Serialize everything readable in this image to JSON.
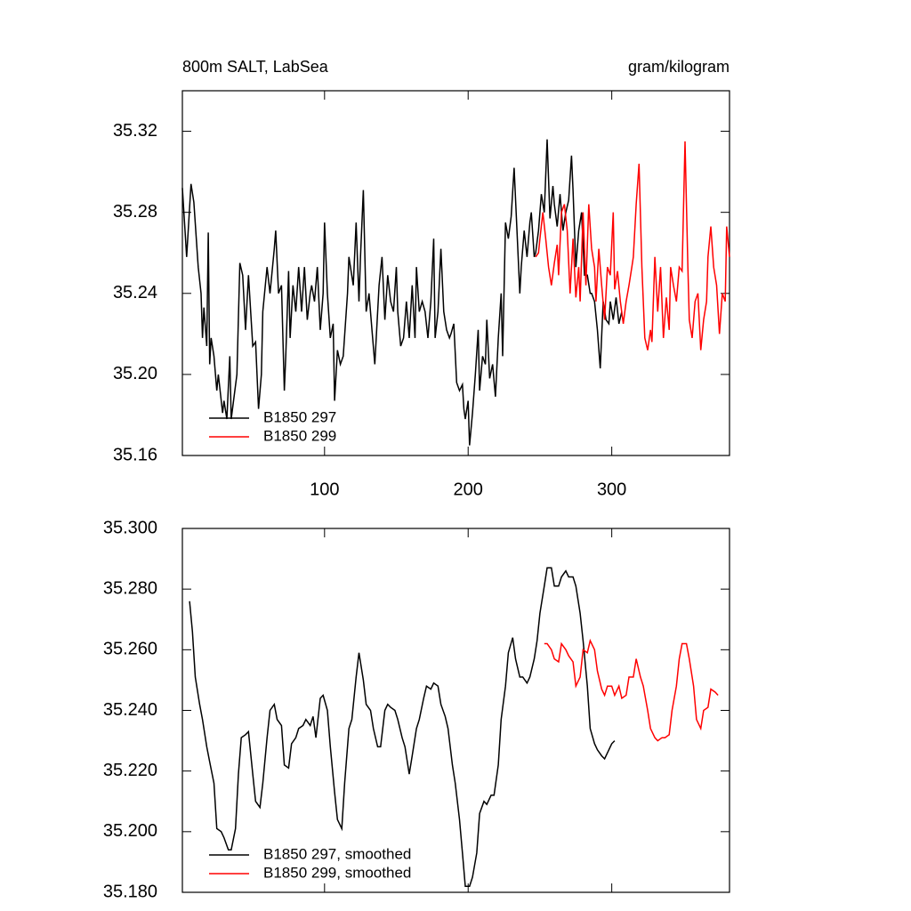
{
  "chart_data": [
    {
      "type": "line",
      "title": "800m SALT, LabSea",
      "units": "gram/kilogram",
      "xlim": [
        1,
        382
      ],
      "xticks": [
        100,
        200,
        300
      ],
      "show_xtick_labels": true,
      "ylim": [
        35.16,
        35.34
      ],
      "yticks": [
        35.16,
        {
          "value": 35.2,
          "label": "35.20"
        },
        35.24,
        35.28,
        35.32
      ],
      "legend": "lower left",
      "series": [
        {
          "name": "B1850 297",
          "color": "#000000",
          "x": [
            1,
            4,
            7,
            9,
            12,
            14,
            15,
            16,
            18,
            19,
            20,
            21,
            23,
            25,
            26,
            29,
            30,
            32,
            34,
            35,
            37,
            39,
            41,
            43,
            45,
            47,
            50,
            52,
            54,
            56,
            57,
            60,
            62,
            65,
            66,
            68,
            70,
            72,
            73,
            75,
            76,
            78,
            80,
            82,
            84,
            86,
            88,
            90,
            91,
            93,
            95,
            97,
            99,
            100,
            102,
            104,
            106,
            107,
            109,
            111,
            113,
            116,
            117,
            120,
            122,
            124,
            125,
            127,
            129,
            131,
            133,
            135,
            137,
            138,
            140,
            142,
            144,
            146,
            148,
            150,
            151,
            153,
            155,
            157,
            159,
            161,
            163,
            164,
            166,
            168,
            170,
            172,
            174,
            176,
            177,
            179,
            181,
            183,
            185,
            187,
            188,
            190,
            192,
            194,
            196,
            197,
            198,
            200,
            201,
            203,
            205,
            207,
            208,
            210,
            212,
            213,
            215,
            217,
            219,
            221,
            223,
            224,
            226,
            228,
            230,
            232,
            234,
            236,
            237,
            239,
            241,
            243,
            244,
            246,
            247,
            249,
            251,
            253,
            255,
            257,
            259,
            260,
            262,
            264,
            266,
            268,
            270,
            272,
            273,
            275,
            277,
            279,
            281,
            283,
            285,
            286,
            288,
            290,
            292,
            294,
            296,
            298,
            299,
            301,
            303,
            305,
            307
          ],
          "values": [
            35.292,
            35.258,
            35.294,
            35.285,
            35.253,
            35.24,
            35.218,
            35.233,
            35.214,
            35.27,
            35.205,
            35.218,
            35.209,
            35.192,
            35.2,
            35.181,
            35.187,
            35.178,
            35.209,
            35.178,
            35.189,
            35.2,
            35.255,
            35.249,
            35.222,
            35.249,
            35.214,
            35.216,
            35.183,
            35.2,
            35.231,
            35.253,
            35.24,
            35.262,
            35.271,
            35.24,
            35.244,
            35.192,
            35.209,
            35.251,
            35.218,
            35.244,
            35.231,
            35.253,
            35.231,
            35.253,
            35.227,
            35.24,
            35.244,
            35.236,
            35.253,
            35.222,
            35.24,
            35.275,
            35.24,
            35.218,
            35.225,
            35.187,
            35.212,
            35.205,
            35.209,
            35.24,
            35.258,
            35.244,
            35.275,
            35.236,
            35.258,
            35.291,
            35.231,
            35.24,
            35.222,
            35.205,
            35.231,
            35.244,
            35.258,
            35.227,
            35.249,
            35.236,
            35.231,
            35.253,
            35.231,
            35.214,
            35.218,
            35.236,
            35.218,
            35.244,
            35.218,
            35.253,
            35.231,
            35.236,
            35.231,
            35.218,
            35.236,
            35.267,
            35.218,
            35.231,
            35.262,
            35.231,
            35.222,
            35.218,
            35.22,
            35.225,
            35.196,
            35.192,
            35.195,
            35.183,
            35.178,
            35.187,
            35.165,
            35.181,
            35.2,
            35.222,
            35.192,
            35.209,
            35.205,
            35.227,
            35.198,
            35.205,
            35.189,
            35.218,
            35.24,
            35.209,
            35.275,
            35.267,
            35.278,
            35.302,
            35.271,
            35.24,
            35.253,
            35.271,
            35.258,
            35.275,
            35.28,
            35.258,
            35.26,
            35.271,
            35.289,
            35.28,
            35.316,
            35.277,
            35.293,
            35.284,
            35.273,
            35.289,
            35.271,
            35.28,
            35.286,
            35.308,
            35.291,
            35.253,
            35.271,
            35.28,
            35.249,
            35.249,
            35.24,
            35.24,
            35.236,
            35.222,
            35.203,
            35.236,
            35.227,
            35.225,
            35.236,
            35.227,
            35.238,
            35.225,
            35.231
          ]
        },
        {
          "name": "B1850 299",
          "color": "#ff0000",
          "x": [
            247,
            249,
            250,
            252,
            254,
            256,
            258,
            260,
            262,
            263,
            265,
            267,
            269,
            271,
            273,
            275,
            277,
            278,
            280,
            282,
            284,
            286,
            288,
            289,
            291,
            293,
            295,
            297,
            299,
            301,
            302,
            304,
            306,
            308,
            310,
            312,
            314,
            315,
            317,
            319,
            321,
            323,
            325,
            327,
            328,
            330,
            332,
            334,
            336,
            338,
            340,
            341,
            343,
            345,
            347,
            349,
            351,
            353,
            354,
            356,
            358,
            360,
            362,
            364,
            366,
            367,
            369,
            371,
            373,
            375,
            377,
            379,
            380,
            382
          ],
          "values": [
            35.258,
            35.26,
            35.267,
            35.28,
            35.267,
            35.253,
            35.244,
            35.255,
            35.264,
            35.249,
            35.28,
            35.284,
            35.271,
            35.24,
            35.267,
            35.238,
            35.253,
            35.236,
            35.28,
            35.244,
            35.284,
            35.262,
            35.253,
            35.236,
            35.262,
            35.244,
            35.227,
            35.253,
            35.249,
            35.28,
            35.242,
            35.251,
            35.236,
            35.225,
            35.236,
            35.244,
            35.253,
            35.258,
            35.284,
            35.304,
            35.253,
            35.218,
            35.212,
            35.222,
            35.216,
            35.258,
            35.231,
            35.253,
            35.218,
            35.238,
            35.222,
            35.253,
            35.244,
            35.236,
            35.253,
            35.251,
            35.315,
            35.253,
            35.227,
            35.218,
            35.236,
            35.24,
            35.212,
            35.227,
            35.236,
            35.258,
            35.273,
            35.253,
            35.244,
            35.22,
            35.24,
            35.236,
            35.273,
            35.258
          ]
        }
      ]
    },
    {
      "type": "line",
      "xlim": [
        1,
        382
      ],
      "xticks": [
        100,
        200,
        300
      ],
      "show_xtick_labels": false,
      "ylim": [
        35.18,
        35.3
      ],
      "yticks": [
        {
          "value": 35.18,
          "label": "35.180"
        },
        {
          "value": 35.2,
          "label": "35.200"
        },
        {
          "value": 35.22,
          "label": "35.220"
        },
        {
          "value": 35.24,
          "label": "35.240"
        },
        {
          "value": 35.26,
          "label": "35.260"
        },
        {
          "value": 35.28,
          "label": "35.280"
        },
        {
          "value": 35.3,
          "label": "35.300"
        }
      ],
      "legend": "lower left",
      "series": [
        {
          "name": "B1850 297, smoothed",
          "color": "#000000",
          "x": [
            6,
            8,
            10,
            13,
            15,
            18,
            20,
            23,
            25,
            28,
            30,
            33,
            35,
            38,
            40,
            42,
            45,
            47,
            50,
            52,
            55,
            57,
            60,
            62,
            65,
            67,
            70,
            72,
            75,
            77,
            80,
            82,
            85,
            87,
            90,
            92,
            94,
            97,
            99,
            102,
            104,
            107,
            109,
            112,
            114,
            117,
            119,
            122,
            124,
            127,
            129,
            132,
            134,
            137,
            139,
            142,
            144,
            146,
            149,
            151,
            154,
            156,
            159,
            161,
            164,
            166,
            169,
            171,
            174,
            176,
            179,
            181,
            184,
            186,
            189,
            191,
            194,
            196,
            198,
            201,
            203,
            206,
            208,
            211,
            213,
            216,
            218,
            221,
            223,
            226,
            228,
            231,
            233,
            236,
            238,
            241,
            243,
            246,
            248,
            250,
            253,
            255,
            258,
            260,
            263,
            265,
            268,
            270,
            273,
            275,
            278,
            280,
            283,
            285,
            288,
            290,
            293,
            295,
            297,
            300,
            302
          ],
          "values": [
            35.276,
            35.266,
            35.251,
            35.242,
            35.237,
            35.228,
            35.223,
            35.216,
            35.201,
            35.2,
            35.198,
            35.194,
            35.194,
            35.201,
            35.219,
            35.231,
            35.232,
            35.233,
            35.219,
            35.21,
            35.208,
            35.216,
            35.231,
            35.24,
            35.242,
            35.237,
            35.235,
            35.222,
            35.221,
            35.229,
            35.231,
            35.234,
            35.235,
            35.237,
            35.235,
            35.238,
            35.231,
            35.244,
            35.245,
            35.24,
            35.228,
            35.213,
            35.204,
            35.201,
            35.216,
            35.234,
            35.237,
            35.251,
            35.259,
            35.25,
            35.242,
            35.24,
            35.234,
            35.228,
            35.228,
            35.24,
            35.242,
            35.241,
            35.24,
            35.237,
            35.231,
            35.228,
            35.219,
            35.225,
            35.234,
            35.237,
            35.244,
            35.248,
            35.247,
            35.249,
            35.248,
            35.242,
            35.238,
            35.234,
            35.222,
            35.216,
            35.204,
            35.193,
            35.182,
            35.182,
            35.185,
            35.193,
            35.206,
            35.21,
            35.209,
            35.212,
            35.212,
            35.222,
            35.237,
            35.248,
            35.259,
            35.264,
            35.257,
            35.251,
            35.251,
            35.249,
            35.251,
            35.257,
            35.263,
            35.272,
            35.281,
            35.287,
            35.287,
            35.281,
            35.281,
            35.284,
            35.286,
            35.284,
            35.284,
            35.281,
            35.272,
            35.263,
            35.248,
            35.234,
            35.229,
            35.227,
            35.225,
            35.224,
            35.226,
            35.229,
            35.23
          ]
        },
        {
          "name": "B1850 299, smoothed",
          "color": "#ff0000",
          "x": [
            253,
            255,
            258,
            260,
            263,
            265,
            268,
            270,
            273,
            275,
            278,
            280,
            283,
            285,
            288,
            290,
            293,
            295,
            297,
            300,
            302,
            305,
            307,
            310,
            312,
            315,
            317,
            320,
            322,
            325,
            327,
            330,
            332,
            335,
            337,
            340,
            342,
            345,
            347,
            349,
            352,
            354,
            357,
            359,
            362,
            364,
            367,
            369,
            372,
            374
          ],
          "values": [
            35.262,
            35.262,
            35.26,
            35.257,
            35.256,
            35.262,
            35.26,
            35.258,
            35.256,
            35.248,
            35.251,
            35.26,
            35.259,
            35.263,
            35.26,
            35.253,
            35.247,
            35.245,
            35.248,
            35.248,
            35.245,
            35.248,
            35.244,
            35.245,
            35.251,
            35.251,
            35.257,
            35.251,
            35.248,
            35.24,
            35.234,
            35.231,
            35.23,
            35.231,
            35.231,
            35.232,
            35.24,
            35.248,
            35.257,
            35.262,
            35.262,
            35.257,
            35.248,
            35.237,
            35.234,
            35.24,
            35.241,
            35.247,
            35.246,
            35.245
          ]
        }
      ]
    }
  ]
}
